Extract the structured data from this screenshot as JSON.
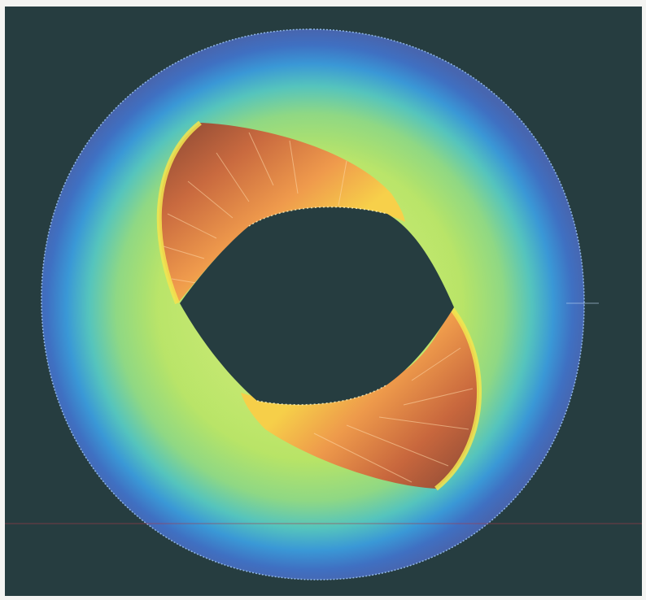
{
  "scene": {
    "background_color": "#263d40",
    "colormap": [
      "#3f68b8",
      "#3b7fd0",
      "#30a7d6",
      "#5fc9b4",
      "#a6dc72",
      "#c9e85b",
      "#f3d64a",
      "#f0a24c",
      "#cf6a3e",
      "#9b4f36"
    ],
    "accent_line_color": "#a83a4a"
  }
}
